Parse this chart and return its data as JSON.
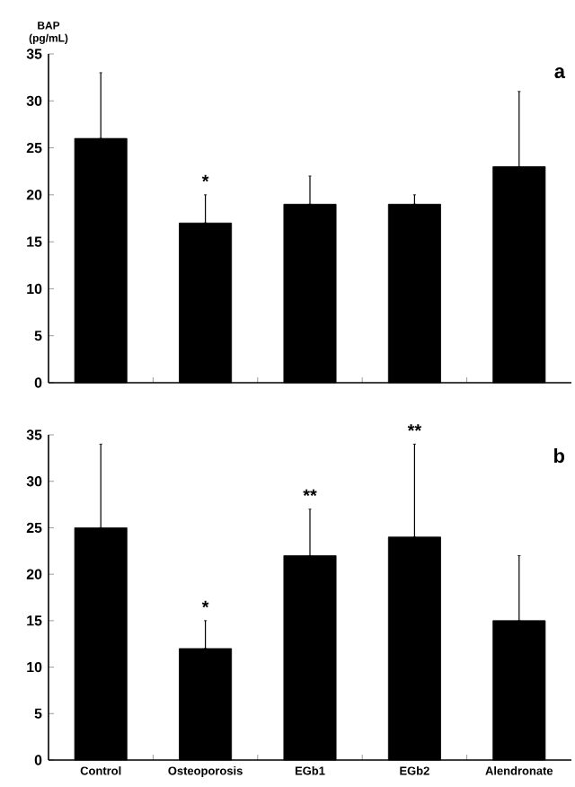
{
  "chart_data": [
    {
      "type": "bar",
      "ylabel": "BAP (pg/mL)",
      "categories": [
        "Control",
        "Osteoporosis",
        "EGb1",
        "EGb2",
        "Alendronate"
      ],
      "values": [
        26,
        17,
        19,
        19,
        23
      ],
      "errors": [
        [
          26,
          33
        ],
        [
          17,
          20
        ],
        [
          19,
          22
        ],
        [
          19,
          20
        ],
        [
          23,
          31
        ]
      ],
      "color": "#000000",
      "ylim": [
        0,
        35
      ],
      "yticks": [
        0,
        5,
        10,
        15,
        20,
        25,
        30,
        35
      ],
      "tick_labels": "y",
      "annotations": [
        {
          "text": "*",
          "x": "Osteoporosis",
          "y": 20
        },
        "a"
      ]
    },
    {
      "type": "bar",
      "categories": [
        "Control",
        "Osteoporosis",
        "EGb1",
        "EGb2",
        "Alendronate"
      ],
      "values": [
        25,
        12,
        22,
        24,
        15
      ],
      "errors": [
        [
          25,
          34
        ],
        [
          12,
          15
        ],
        [
          22,
          27
        ],
        [
          24,
          34
        ],
        [
          15,
          22
        ]
      ],
      "color": "#000000",
      "ylim": [
        0,
        35
      ],
      "yticks": [
        0,
        5,
        10,
        15,
        20,
        25,
        30,
        35
      ],
      "annotations": [
        {
          "text": "**",
          "x": "EGb1",
          "y": 27
        },
        {
          "text": "**",
          "x": "EGb2",
          "y": 34
        },
        {
          "text": "*",
          "x": "Osteoporosis",
          "y": 15
        },
        "b"
      ]
    }
  ]
}
